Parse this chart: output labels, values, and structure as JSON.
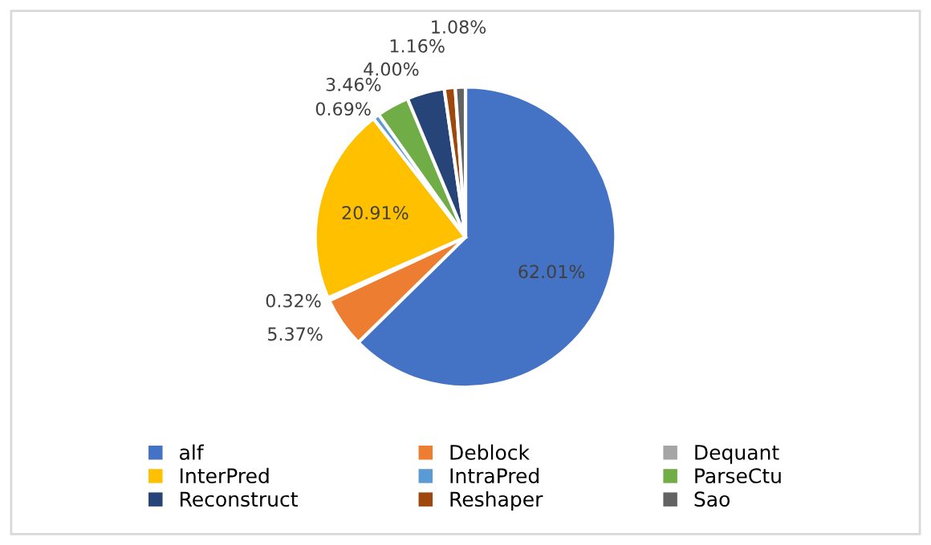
{
  "chart_data": {
    "type": "pie",
    "categories": [
      "alf",
      "Deblock",
      "Dequant",
      "InterPred",
      "IntraPred",
      "ParseCtu",
      "Reconstruct",
      "Reshaper",
      "Sao"
    ],
    "values": [
      62.01,
      5.37,
      0.32,
      20.91,
      0.69,
      3.46,
      4.0,
      1.16,
      1.08
    ],
    "value_labels": [
      "62.01%",
      "5.37%",
      "0.32%",
      "20.91%",
      "0.69%",
      "3.46%",
      "4.00%",
      "1.16%",
      "1.08%"
    ],
    "colors": [
      "#4472c4",
      "#ed7d31",
      "#a5a5a5",
      "#ffc000",
      "#5b9bd5",
      "#70ad47",
      "#264478",
      "#9e480e",
      "#636363"
    ],
    "legend": "bottom"
  }
}
